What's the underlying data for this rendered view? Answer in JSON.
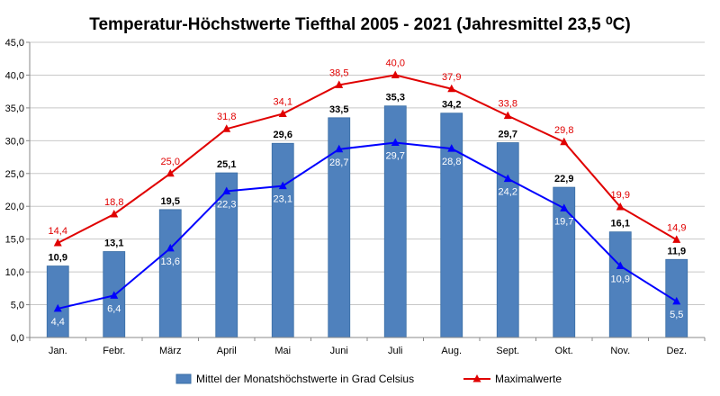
{
  "chart_data": {
    "type": "bar",
    "title": "Temperatur-Höchstwerte Tiefthal 2005 - 2021 (Jahresmittel 23,5 ⁰C)",
    "categories": [
      "Jan.",
      "Febr.",
      "März",
      "April",
      "Mai",
      "Juni",
      "Juli",
      "Aug.",
      "Sept.",
      "Okt.",
      "Nov.",
      "Dez."
    ],
    "ylim": [
      0,
      45
    ],
    "yticks": [
      "0,0",
      "5,0",
      "10,0",
      "15,0",
      "20,0",
      "25,0",
      "30,0",
      "35,0",
      "40,0",
      "45,0"
    ],
    "grid": true,
    "legend_position": "bottom",
    "series": [
      {
        "name": "Mittel der Monatshöchstwerte in Grad Celsius",
        "kind": "bar",
        "color": "#4f81bd",
        "values": [
          10.9,
          13.1,
          19.5,
          25.1,
          29.6,
          33.5,
          35.3,
          34.2,
          29.7,
          22.9,
          16.1,
          11.9
        ],
        "labels": [
          "10,9",
          "13,1",
          "19,5",
          "25,1",
          "29,6",
          "33,5",
          "35,3",
          "34,2",
          "29,7",
          "22,9",
          "16,1",
          "11,9"
        ]
      },
      {
        "name": "Maximalwerte",
        "kind": "line",
        "marker": "triangle",
        "color": "#e00000",
        "values": [
          14.4,
          18.8,
          25.0,
          31.8,
          34.1,
          38.5,
          40.0,
          37.9,
          33.8,
          29.8,
          19.9,
          14.9
        ],
        "labels": [
          "14,4",
          "18,8",
          "25,0",
          "31,8",
          "34,1",
          "38,5",
          "40,0",
          "37,9",
          "33,8",
          "29,8",
          "19,9",
          "14,9"
        ]
      },
      {
        "kind": "line",
        "marker": "triangle",
        "color": "#0000ff",
        "values": [
          4.4,
          6.4,
          13.6,
          22.3,
          23.1,
          28.7,
          29.7,
          28.8,
          24.2,
          19.7,
          10.9,
          5.5
        ],
        "labels": [
          "4,4",
          "6,4",
          "13,6",
          "22,3",
          "23,1",
          "28,7",
          "29,7",
          "28,8",
          "24,2",
          "19,7",
          "10,9",
          "5,5"
        ]
      }
    ]
  }
}
